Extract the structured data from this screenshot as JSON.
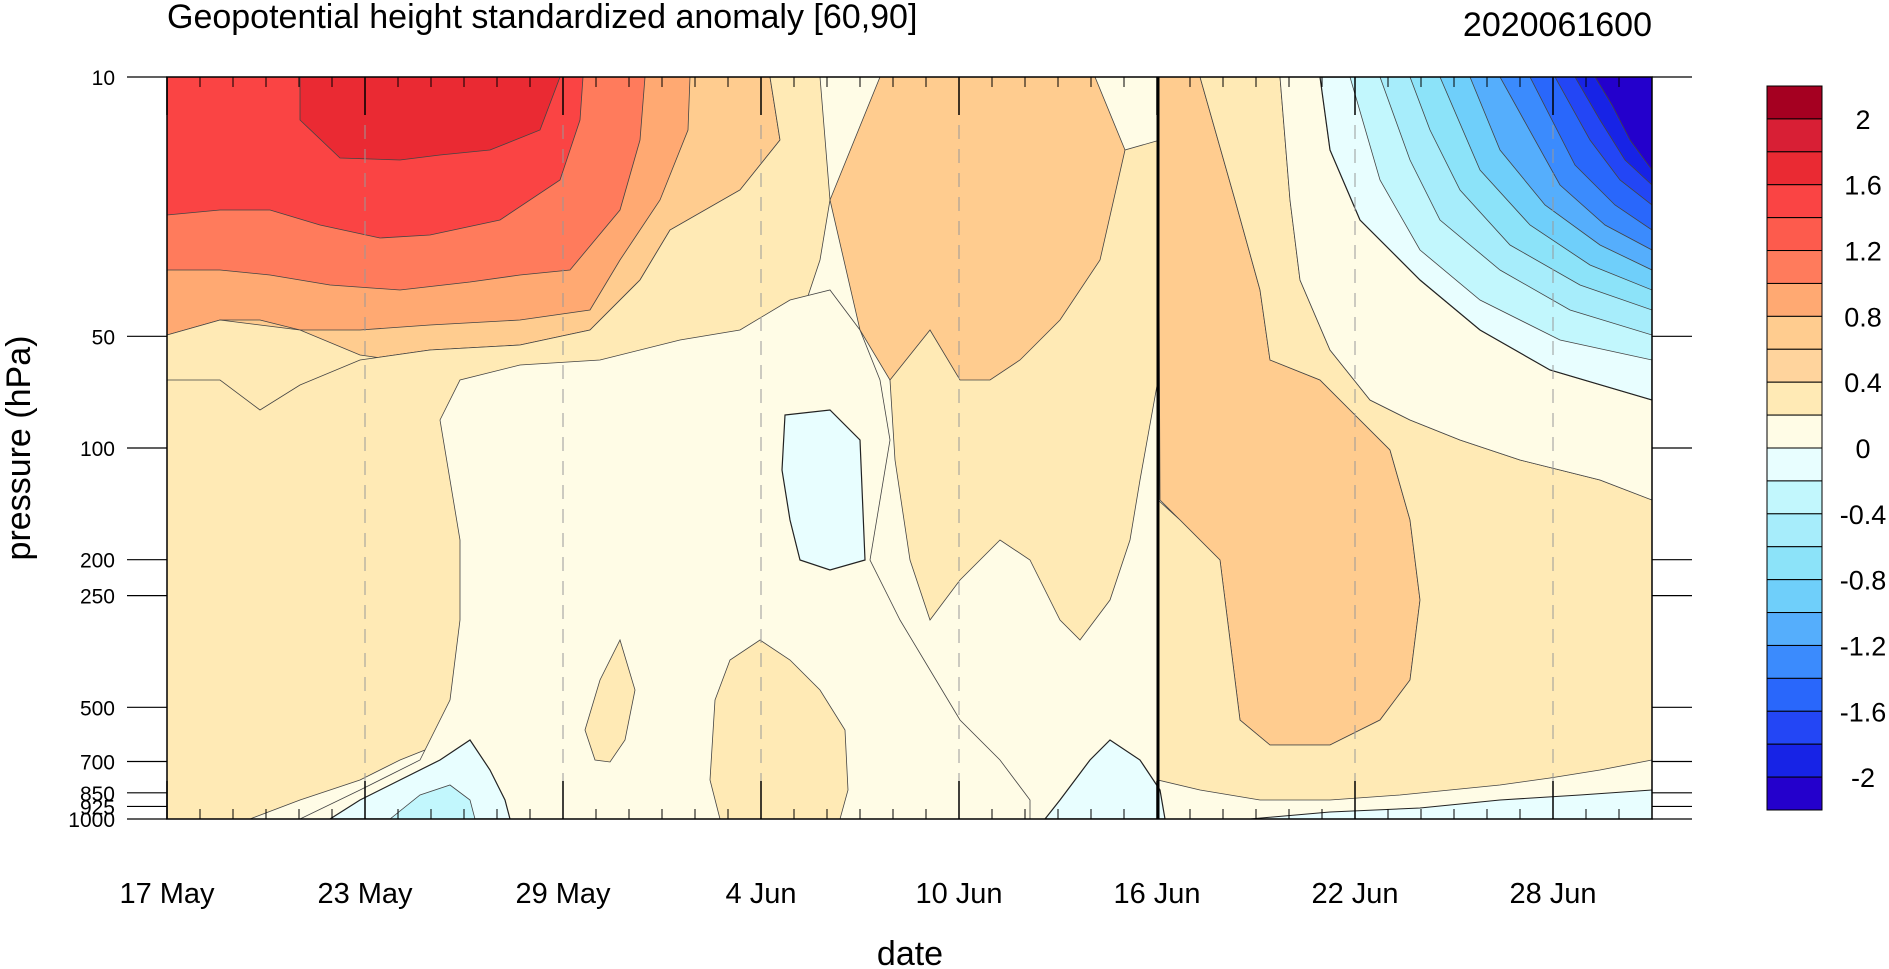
{
  "chart_data": {
    "type": "heatmap",
    "title": "Geopotential height standardized anomaly [60,90]",
    "subtitle": "2020061600",
    "xlabel": "date",
    "ylabel": "pressure (hPa)",
    "x_ticks": [
      "17 May",
      "23 May",
      "29 May",
      "4 Jun",
      "10 Jun",
      "16 Jun",
      "22 Jun",
      "28 Jun"
    ],
    "x_range": [
      "17 May",
      "1 Jul"
    ],
    "y_scale": "log",
    "y_ticks": [
      10,
      50,
      100,
      200,
      250,
      500,
      700,
      850,
      925,
      1000
    ],
    "y_tick_labels": [
      "10",
      "50",
      "100",
      "200",
      "250",
      "500",
      "700",
      "850",
      "925",
      "1000"
    ],
    "y_range": [
      10,
      1000
    ],
    "colorbar": {
      "labels": [
        "2",
        "1.6",
        "1.2",
        "0.8",
        "0.4",
        "0",
        "-0.4",
        "-0.8",
        "-1.2",
        "-1.6",
        "-2"
      ],
      "levels": [
        2.2,
        2.0,
        1.8,
        1.6,
        1.4,
        1.2,
        1.0,
        0.8,
        0.6,
        0.4,
        0.2,
        0.0,
        -0.2,
        -0.4,
        -0.6,
        -0.8,
        -1.0,
        -1.2,
        -1.4,
        -1.6,
        -1.8,
        -2.0,
        -2.2
      ],
      "colors": [
        "#a50021",
        "#d81f35",
        "#ea2a33",
        "#fa4444",
        "#fd5b4d",
        "#ff7b5c",
        "#ffa972",
        "#ffcc8f",
        "#ffd49d",
        "#ffeab5",
        "#fffce6",
        "#e8feff",
        "#c2f7fd",
        "#a7edfb",
        "#8ce3f9",
        "#6fcffa",
        "#55aefc",
        "#3b8bfd",
        "#2967fb",
        "#2346f5",
        "#1723e6",
        "#2400cc"
      ]
    },
    "current_date_marker": "16 Jun",
    "grid": "dashed vertical lines at labeled dates",
    "legend": "colorbar right"
  }
}
